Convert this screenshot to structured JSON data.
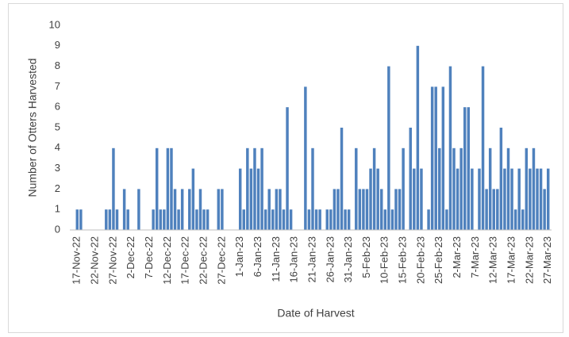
{
  "chart_data": {
    "type": "bar",
    "x_label": "Date of Harvest",
    "y_label": "Number of Otters Harvested",
    "color": "#4f81bd",
    "ylim": [
      0,
      10
    ],
    "yticks": [
      0,
      1,
      2,
      3,
      4,
      5,
      6,
      7,
      8,
      9,
      10
    ],
    "grid": false,
    "categories": [
      "17-Nov-22",
      null,
      null,
      null,
      null,
      "22-Nov-22",
      null,
      null,
      null,
      null,
      "27-Nov-22",
      null,
      null,
      null,
      null,
      "2-Dec-22",
      null,
      null,
      null,
      null,
      "7-Dec-22",
      null,
      null,
      null,
      null,
      "12-Dec-22",
      null,
      null,
      null,
      null,
      "17-Dec-22",
      null,
      null,
      null,
      null,
      "22-Dec-22",
      null,
      null,
      null,
      null,
      "27-Dec-22",
      null,
      null,
      null,
      null,
      "1-Jan-23",
      null,
      null,
      null,
      null,
      "6-Jan-23",
      null,
      null,
      null,
      null,
      "11-Jan-23",
      null,
      null,
      null,
      null,
      "16-Jan-23",
      null,
      null,
      null,
      null,
      "21-Jan-23",
      null,
      null,
      null,
      null,
      "26-Jan-23",
      null,
      null,
      null,
      null,
      "31-Jan-23",
      null,
      null,
      null,
      null,
      "5-Feb-23",
      null,
      null,
      null,
      null,
      "10-Feb-23",
      null,
      null,
      null,
      null,
      "15-Feb-23",
      null,
      null,
      null,
      null,
      "20-Feb-23",
      null,
      null,
      null,
      null,
      "25-Feb-23",
      null,
      null,
      null,
      null,
      "2-Mar-23",
      null,
      null,
      null,
      null,
      "7-Mar-23",
      null,
      null,
      null,
      null,
      "12-Mar-23",
      null,
      null,
      null,
      null,
      "17-Mar-23",
      null,
      null,
      null,
      null,
      "22-Mar-23",
      null,
      null,
      null,
      null,
      "27-Mar-23"
    ],
    "values": [
      1,
      1,
      0,
      0,
      0,
      0,
      0,
      0,
      1,
      1,
      4,
      1,
      0,
      2,
      1,
      0,
      0,
      2,
      0,
      0,
      0,
      1,
      4,
      1,
      1,
      4,
      4,
      2,
      1,
      2,
      0,
      2,
      3,
      1,
      2,
      1,
      1,
      0,
      0,
      2,
      2,
      0,
      0,
      0,
      0,
      3,
      1,
      4,
      3,
      4,
      3,
      4,
      1,
      2,
      1,
      2,
      2,
      1,
      6,
      1,
      0,
      0,
      0,
      7,
      1,
      4,
      1,
      1,
      0,
      1,
      1,
      2,
      2,
      5,
      1,
      1,
      0,
      4,
      2,
      2,
      2,
      3,
      4,
      3,
      2,
      1,
      8,
      1,
      2,
      2,
      4,
      0,
      5,
      3,
      9,
      3,
      0,
      1,
      7,
      7,
      4,
      7,
      1,
      8,
      4,
      3,
      4,
      6,
      6,
      3,
      0,
      3,
      8,
      2,
      4,
      2,
      2,
      5,
      3,
      4,
      3,
      1,
      3,
      1,
      4,
      3,
      4,
      3,
      3,
      2,
      3
    ]
  }
}
